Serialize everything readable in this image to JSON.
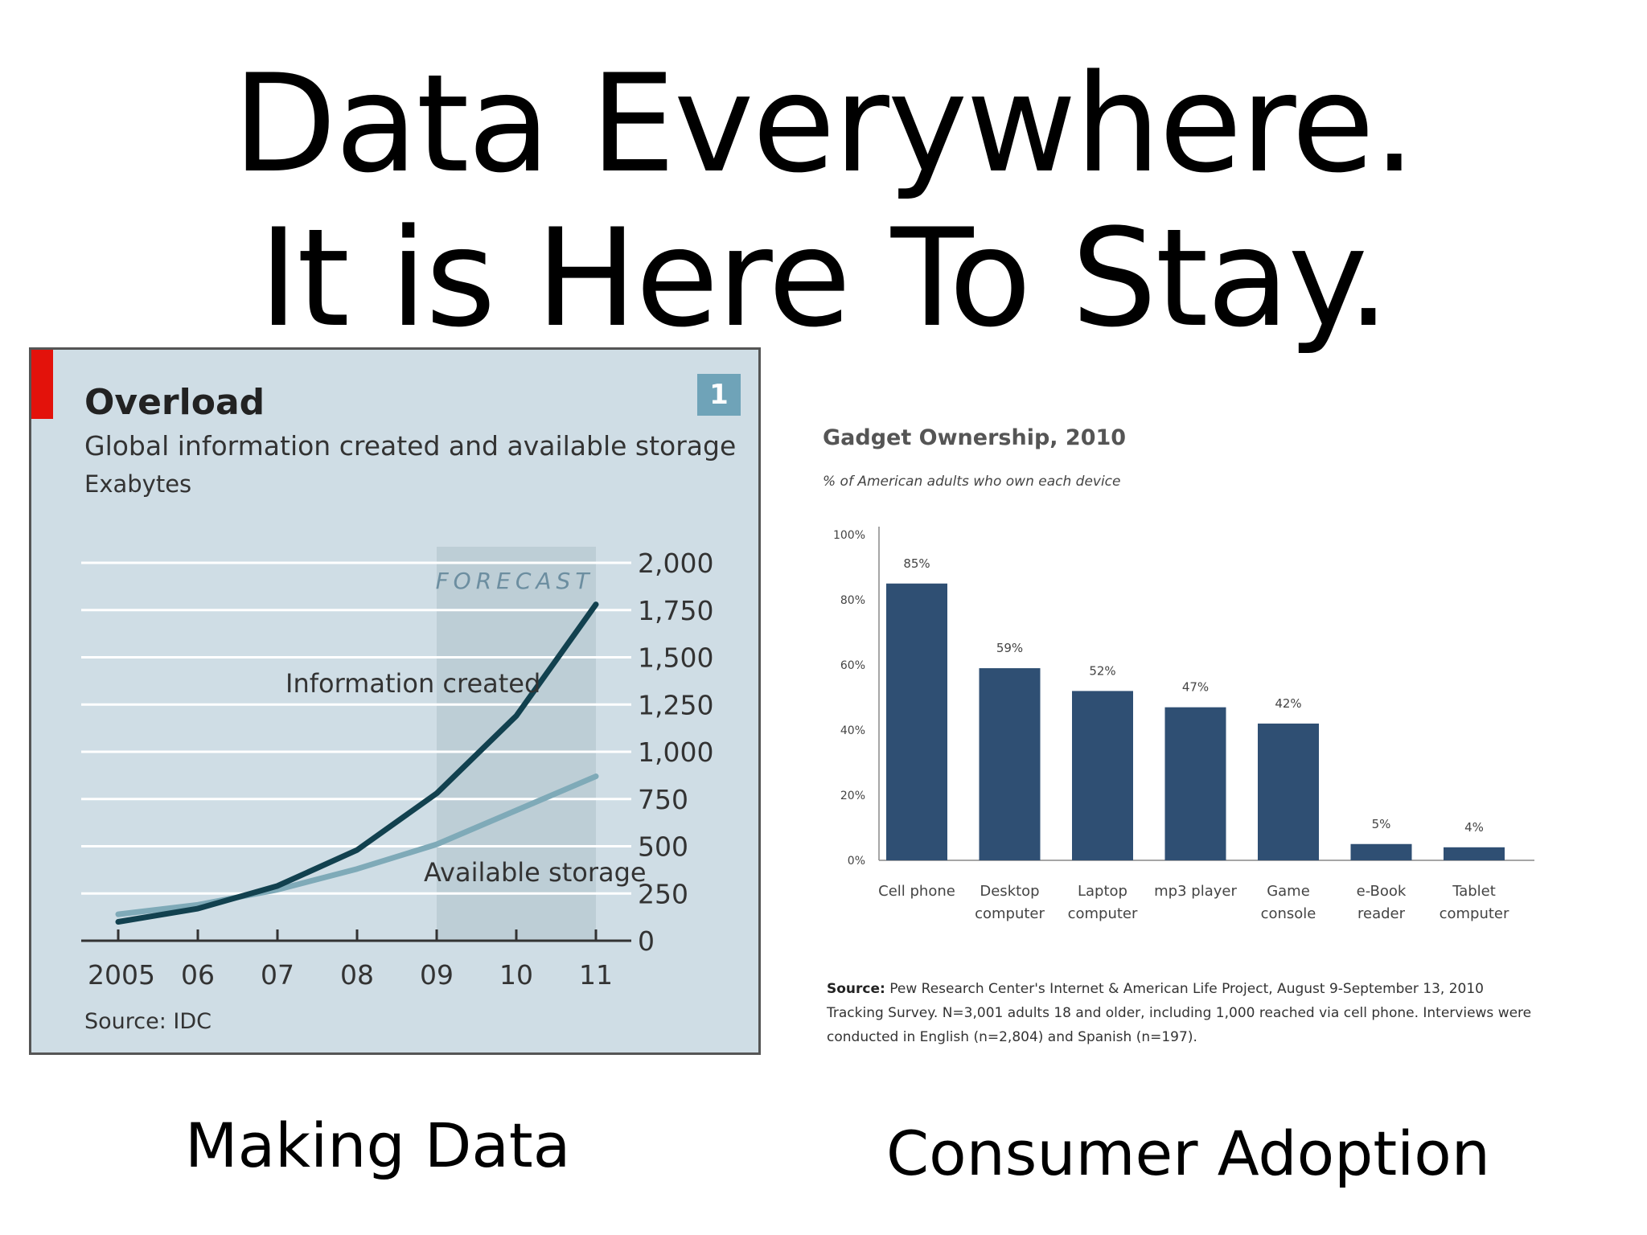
{
  "slide": {
    "title_line1": "Data Everywhere.",
    "title_line2": "It is Here To Stay.",
    "caption_left": "Making Data",
    "caption_right": "Consumer Adoption"
  },
  "colors": {
    "left_panel_bg": "#cfdde5",
    "accent_red": "#e3120b",
    "line_info": "#12414f",
    "line_storage": "#7faab8",
    "forecast_band": "#bdced6",
    "bar_blue": "#2f4f73"
  },
  "chart_data": [
    {
      "type": "line",
      "title": "Overload",
      "subtitle": "Global information created and available storage",
      "unit_label": "Exabytes",
      "badge": "1",
      "forecast_label": "FORECAST",
      "source": "Source: IDC",
      "x": [
        "2005",
        "06",
        "07",
        "08",
        "09",
        "10",
        "11"
      ],
      "ylim": [
        0,
        2000
      ],
      "y_ticks": [
        "2,000",
        "1,750",
        "1,500",
        "1,250",
        "1,000",
        "750",
        "500",
        "250",
        "0"
      ],
      "y_tick_values": [
        2000,
        1750,
        1500,
        1250,
        1000,
        750,
        500,
        250,
        0
      ],
      "forecast_from": "09",
      "grid": true,
      "series": [
        {
          "name": "Information created",
          "values": [
            100,
            170,
            290,
            480,
            780,
            1190,
            1780
          ]
        },
        {
          "name": "Available storage",
          "values": [
            140,
            190,
            270,
            380,
            510,
            690,
            870
          ]
        }
      ]
    },
    {
      "type": "bar",
      "title": "Gadget Ownership, 2010",
      "subtitle": "% of American adults who own each device",
      "categories": [
        [
          "Cell phone"
        ],
        [
          "Desktop",
          "computer"
        ],
        [
          "Laptop",
          "computer"
        ],
        [
          "mp3 player"
        ],
        [
          "Game",
          "console"
        ],
        [
          "e-Book",
          "reader"
        ],
        [
          "Tablet",
          "computer"
        ]
      ],
      "values": [
        85,
        59,
        52,
        47,
        42,
        5,
        4
      ],
      "value_labels": [
        "85%",
        "59%",
        "52%",
        "47%",
        "42%",
        "5%",
        "4%"
      ],
      "ylim": [
        0,
        100
      ],
      "y_ticks": [
        "100%",
        "80%",
        "60%",
        "40%",
        "20%",
        "0%"
      ],
      "y_tick_values": [
        100,
        80,
        60,
        40,
        20,
        0
      ],
      "source_label": "Source:",
      "source_text": "Pew Research Center's Internet & American Life Project, August 9-September 13, 2010 Tracking Survey. N=3,001 adults 18 and older, including 1,000 reached via cell phone. Interviews were conducted in English (n=2,804) and Spanish (n=197)."
    }
  ]
}
